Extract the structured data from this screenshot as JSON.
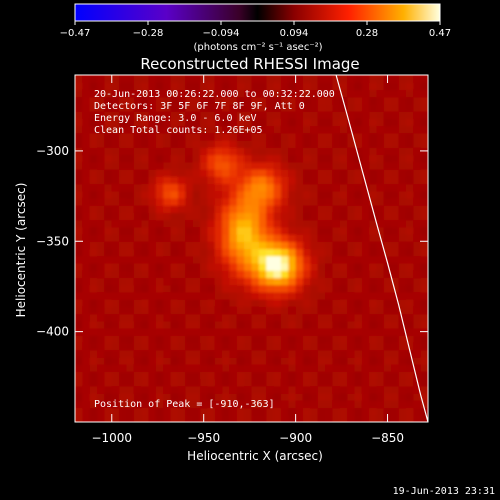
{
  "chart_data": {
    "type": "heatmap",
    "title": "Reconstructed RHESSI Image",
    "xlabel": "Heliocentric X (arcsec)",
    "ylabel": "Heliocentric Y (arcsec)",
    "xlim": [
      -1020,
      -828
    ],
    "ylim": [
      -450,
      -258
    ],
    "x_ticks": [
      -1000,
      -950,
      -900,
      -850
    ],
    "x_tick_labels": [
      "−1000",
      "−950",
      "−900",
      "−850"
    ],
    "y_ticks": [
      -300,
      -350,
      -400
    ],
    "y_tick_labels": [
      "−300",
      "−350",
      "−400"
    ],
    "colorbar": {
      "colormap": "hot-reversed-blue",
      "range": [
        -0.47,
        0.47
      ],
      "tick_labels": [
        "−0.47",
        "−0.28",
        "−0.094",
        "0.094",
        "0.28",
        "0.47"
      ],
      "units": "(photons cm⁻² s⁻¹ asec⁻²)"
    },
    "annotations": [
      "20-Jun-2013 00:26:22.000 to 00:32:22.000",
      "Detectors: 3F 5F 6F 7F 8F 9F, Att 0",
      "Energy Range: 3.0 - 6.0 keV",
      "Clean    Total counts: 1.26E+05"
    ],
    "peak_label": "Position of Peak = [-910,-363]",
    "peak": [
      -910,
      -363
    ],
    "sources": [
      {
        "x": -910,
        "y": -363,
        "intensity": 0.47,
        "sx": 9,
        "sy": 9
      },
      {
        "x": -928,
        "y": -345,
        "intensity": 0.33,
        "sx": 9,
        "sy": 14
      },
      {
        "x": -918,
        "y": -320,
        "intensity": 0.22,
        "sx": 8,
        "sy": 8
      },
      {
        "x": -940,
        "y": -307,
        "intensity": 0.17,
        "sx": 7,
        "sy": 7
      },
      {
        "x": -968,
        "y": -323,
        "intensity": 0.16,
        "sx": 6,
        "sy": 6
      }
    ],
    "limb": [
      [
        -878,
        -258
      ],
      [
        -872,
        -280
      ],
      [
        -864,
        -310
      ],
      [
        -856,
        -340
      ],
      [
        -850,
        -362
      ],
      [
        -844,
        -385
      ],
      [
        -838,
        -410
      ],
      [
        -832,
        -435
      ],
      [
        -828,
        -450
      ]
    ],
    "footer_date": "19-Jun-2013 23:31"
  }
}
